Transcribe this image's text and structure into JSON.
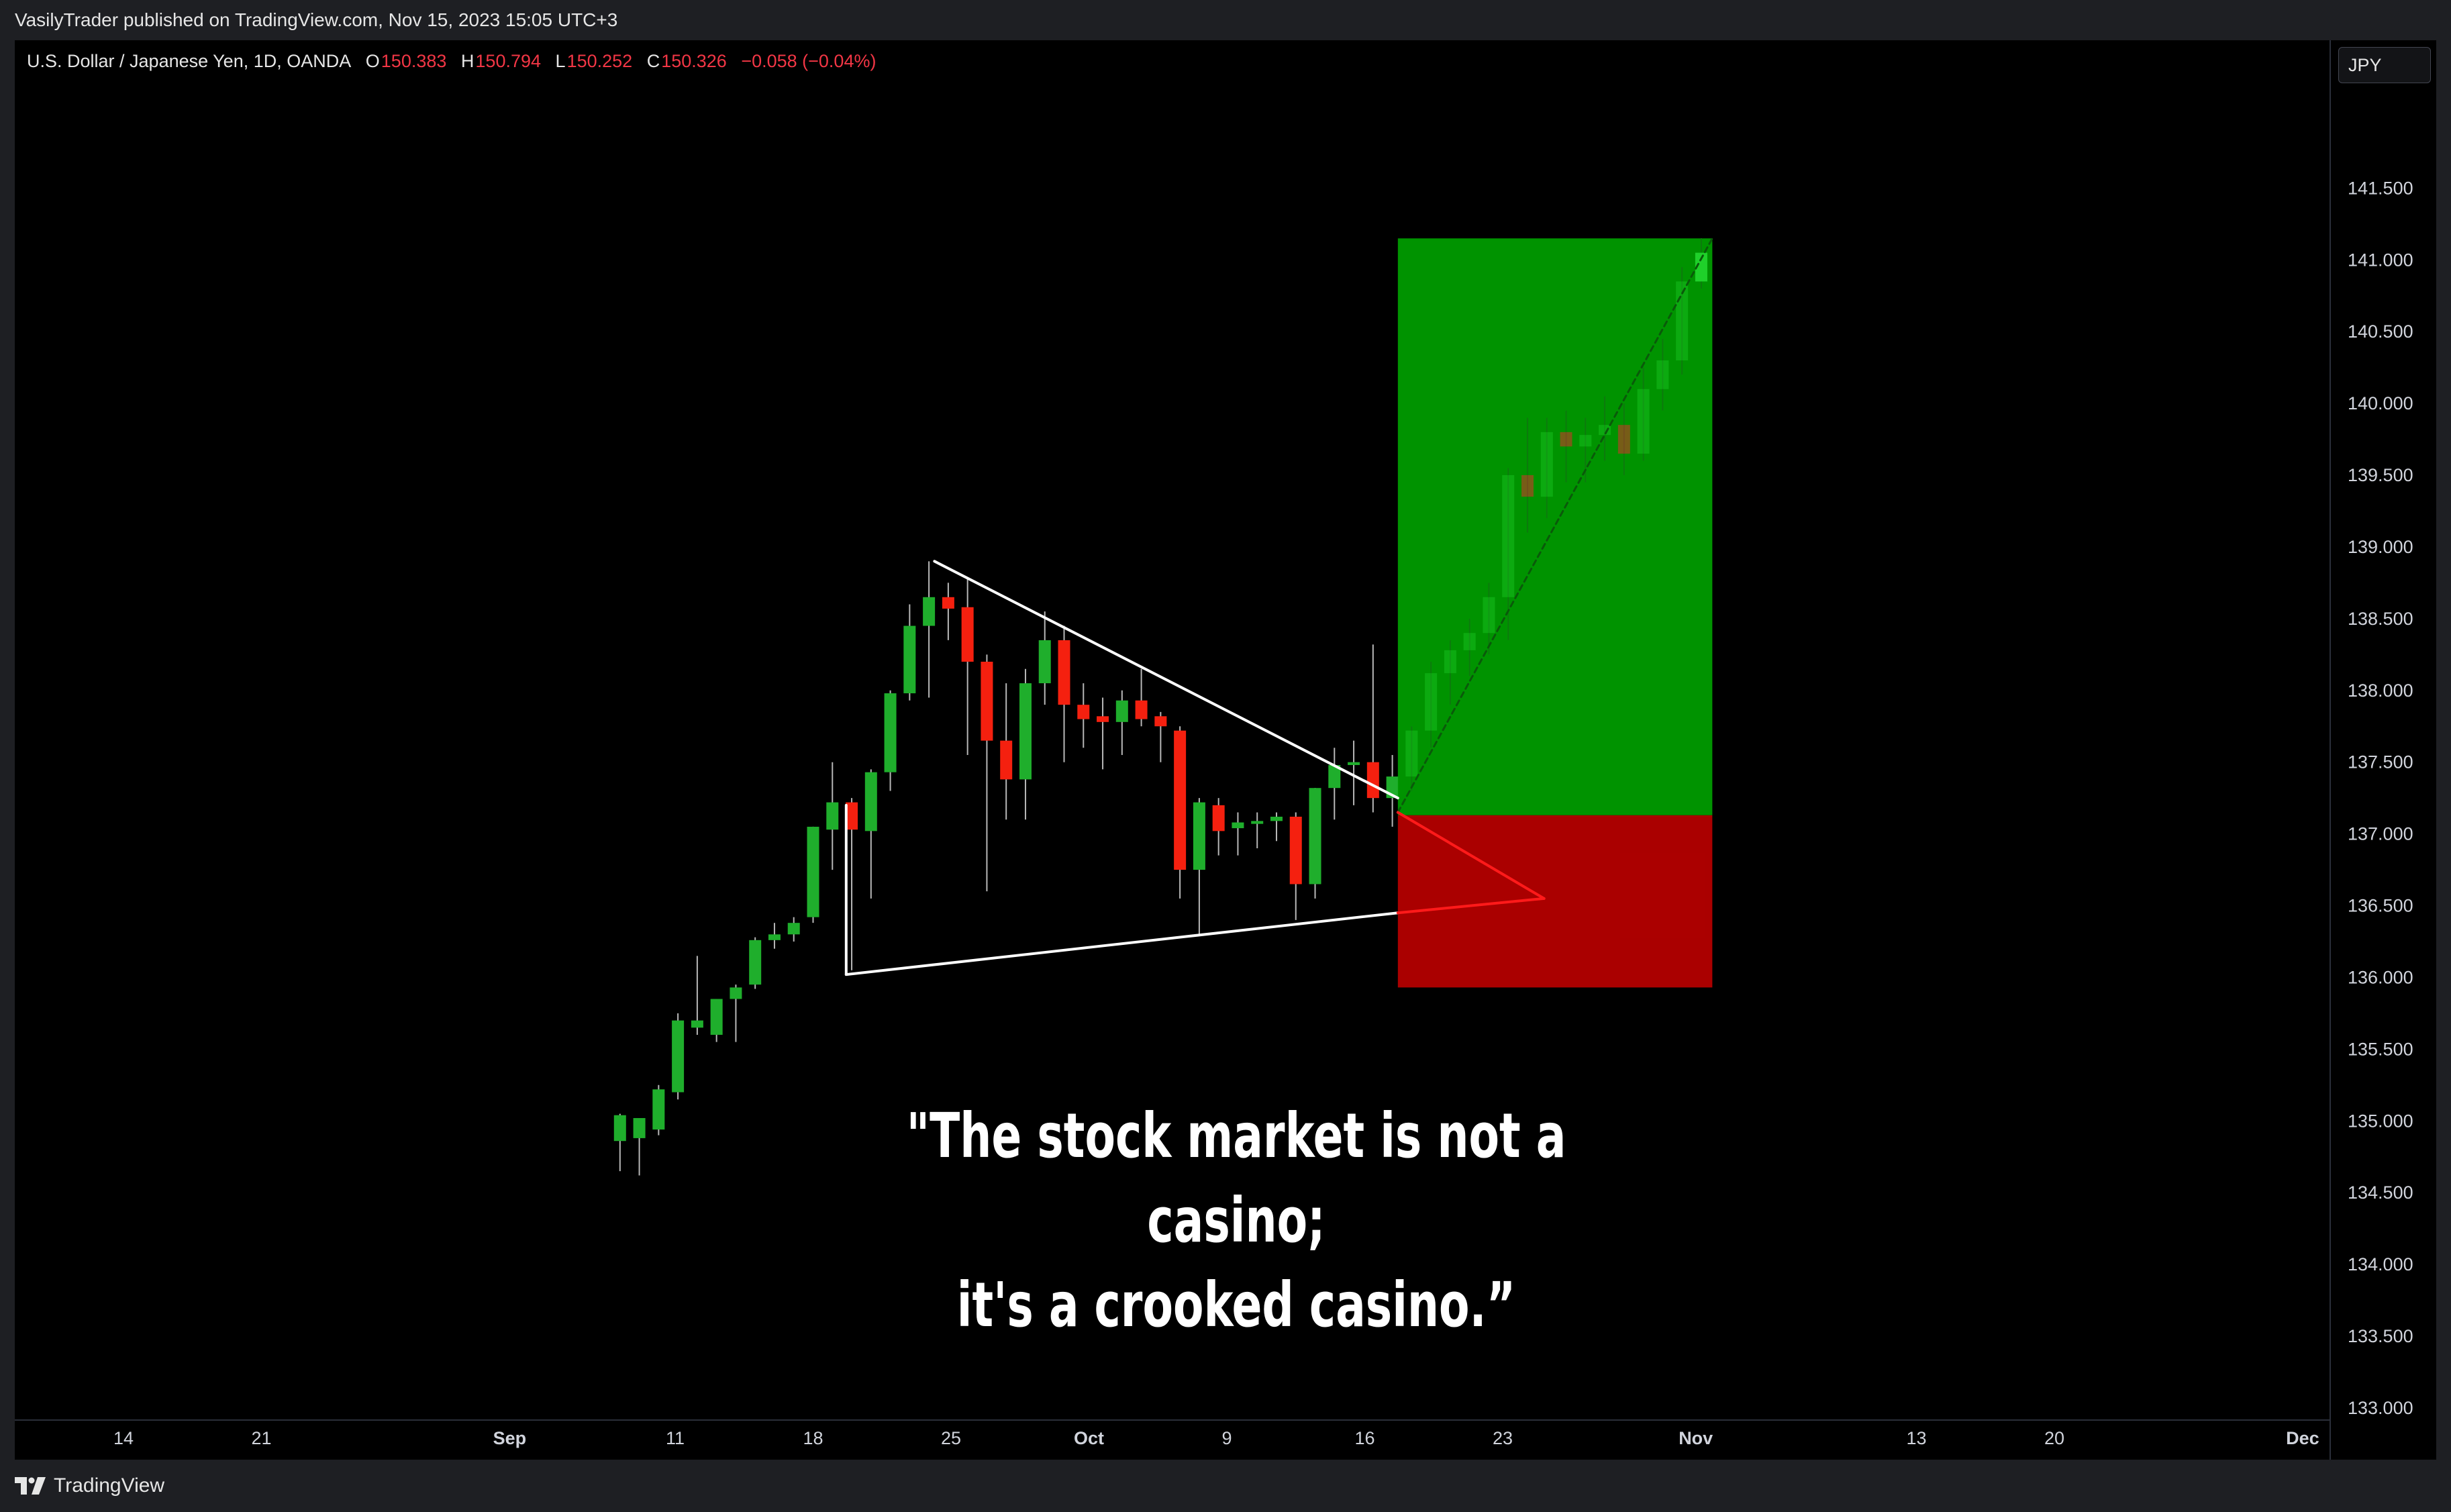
{
  "header": {
    "published": "VasilyTrader published on TradingView.com, Nov 15, 2023 15:05 UTC+3"
  },
  "legend": {
    "symbol": "U.S. Dollar / Japanese Yen, 1D, OANDA",
    "o_label": "O",
    "o": "150.383",
    "h_label": "H",
    "h": "150.794",
    "l_label": "L",
    "l": "150.252",
    "c_label": "C",
    "c": "150.326",
    "change": "−0.058 (−0.04%)"
  },
  "currency": "JPY",
  "quote": {
    "line1": "\"The stock market is not a casino;",
    "line2": "it's a crooked casino.”"
  },
  "footer": {
    "brand": "TradingView"
  },
  "colors": {
    "up": "#089981",
    "up_candle": "#1fae2c",
    "down_candle": "#f5200f",
    "legend_red": "#f23645",
    "profit_zone": "#00a000",
    "loss_zone": "#b00000"
  },
  "chart_data": {
    "type": "candlestick",
    "y_ticks": [
      "141.500",
      "141.000",
      "140.500",
      "140.000",
      "139.500",
      "139.000",
      "138.500",
      "138.000",
      "137.500",
      "137.000",
      "136.500",
      "136.000",
      "135.500",
      "135.000",
      "134.500",
      "134.000",
      "133.500",
      "133.000"
    ],
    "ylim": [
      132.85,
      142.25
    ],
    "x_ticks": [
      {
        "label": "14",
        "day": 0
      },
      {
        "label": "21",
        "day": 5
      },
      {
        "label": "Sep",
        "day": 14
      },
      {
        "label": "11",
        "day": 20
      },
      {
        "label": "18",
        "day": 25
      },
      {
        "label": "25",
        "day": 30
      },
      {
        "label": "Oct",
        "day": 35
      },
      {
        "label": "9",
        "day": 40
      },
      {
        "label": "16",
        "day": 45
      },
      {
        "label": "23",
        "day": 50
      },
      {
        "label": "Nov",
        "day": 57
      },
      {
        "label": "13",
        "day": 65
      },
      {
        "label": "20",
        "day": 70
      },
      {
        "label": "Dec",
        "day": 79
      }
    ],
    "candles": [
      {
        "d": 18,
        "o": 134.86,
        "h": 135.05,
        "l": 134.65,
        "c": 135.04
      },
      {
        "d": 18.7,
        "o": 134.88,
        "h": 135.0,
        "l": 134.62,
        "c": 135.02
      },
      {
        "d": 19.4,
        "o": 134.94,
        "h": 135.25,
        "l": 134.9,
        "c": 135.22
      },
      {
        "d": 20.1,
        "o": 135.2,
        "h": 135.75,
        "l": 135.15,
        "c": 135.7
      },
      {
        "d": 20.8,
        "o": 135.65,
        "h": 136.15,
        "l": 135.6,
        "c": 135.7
      },
      {
        "d": 21.5,
        "o": 135.6,
        "h": 135.85,
        "l": 135.55,
        "c": 135.85
      },
      {
        "d": 22.2,
        "o": 135.85,
        "h": 135.95,
        "l": 135.55,
        "c": 135.93
      },
      {
        "d": 22.9,
        "o": 135.95,
        "h": 136.28,
        "l": 135.92,
        "c": 136.26
      },
      {
        "d": 23.6,
        "o": 136.26,
        "h": 136.38,
        "l": 136.2,
        "c": 136.3
      },
      {
        "d": 24.3,
        "o": 136.3,
        "h": 136.42,
        "l": 136.25,
        "c": 136.38
      },
      {
        "d": 25.0,
        "o": 136.42,
        "h": 137.05,
        "l": 136.38,
        "c": 137.05
      },
      {
        "d": 25.7,
        "o": 137.03,
        "h": 137.5,
        "l": 136.75,
        "c": 137.22
      },
      {
        "d": 26.4,
        "o": 137.22,
        "h": 137.25,
        "l": 136.05,
        "c": 137.03
      },
      {
        "d": 27.1,
        "o": 137.02,
        "h": 137.45,
        "l": 136.55,
        "c": 137.43
      },
      {
        "d": 27.8,
        "o": 137.43,
        "h": 138.0,
        "l": 137.3,
        "c": 137.98
      },
      {
        "d": 28.5,
        "o": 137.98,
        "h": 138.6,
        "l": 137.93,
        "c": 138.45
      },
      {
        "d": 29.2,
        "o": 138.45,
        "h": 138.9,
        "l": 137.95,
        "c": 138.65
      },
      {
        "d": 29.9,
        "o": 138.65,
        "h": 138.75,
        "l": 138.35,
        "c": 138.57
      },
      {
        "d": 30.6,
        "o": 138.58,
        "h": 138.78,
        "l": 137.55,
        "c": 138.2
      },
      {
        "d": 31.3,
        "o": 138.2,
        "h": 138.25,
        "l": 136.6,
        "c": 137.65
      },
      {
        "d": 32.0,
        "o": 137.65,
        "h": 138.05,
        "l": 137.1,
        "c": 137.38
      },
      {
        "d": 32.7,
        "o": 137.38,
        "h": 138.15,
        "l": 137.1,
        "c": 138.05
      },
      {
        "d": 33.4,
        "o": 138.05,
        "h": 138.55,
        "l": 137.9,
        "c": 138.35
      },
      {
        "d": 34.1,
        "o": 138.35,
        "h": 138.45,
        "l": 137.5,
        "c": 137.9
      },
      {
        "d": 34.8,
        "o": 137.9,
        "h": 138.05,
        "l": 137.6,
        "c": 137.8
      },
      {
        "d": 35.5,
        "o": 137.82,
        "h": 137.95,
        "l": 137.45,
        "c": 137.78
      },
      {
        "d": 36.2,
        "o": 137.78,
        "h": 138.0,
        "l": 137.55,
        "c": 137.93
      },
      {
        "d": 36.9,
        "o": 137.93,
        "h": 138.15,
        "l": 137.75,
        "c": 137.8
      },
      {
        "d": 37.6,
        "o": 137.82,
        "h": 137.85,
        "l": 137.5,
        "c": 137.75
      },
      {
        "d": 38.3,
        "o": 137.72,
        "h": 137.75,
        "l": 136.55,
        "c": 136.75
      },
      {
        "d": 39.0,
        "o": 136.75,
        "h": 137.25,
        "l": 136.3,
        "c": 137.22
      },
      {
        "d": 39.7,
        "o": 137.2,
        "h": 137.25,
        "l": 136.85,
        "c": 137.02
      },
      {
        "d": 40.4,
        "o": 137.04,
        "h": 137.15,
        "l": 136.85,
        "c": 137.08
      },
      {
        "d": 41.1,
        "o": 137.07,
        "h": 137.15,
        "l": 136.9,
        "c": 137.09
      },
      {
        "d": 41.8,
        "o": 137.09,
        "h": 137.15,
        "l": 136.95,
        "c": 137.12
      },
      {
        "d": 42.5,
        "o": 137.12,
        "h": 137.15,
        "l": 136.4,
        "c": 136.65
      },
      {
        "d": 43.2,
        "o": 136.65,
        "h": 137.32,
        "l": 136.55,
        "c": 137.32
      },
      {
        "d": 43.9,
        "o": 137.32,
        "h": 137.6,
        "l": 137.1,
        "c": 137.48
      },
      {
        "d": 44.6,
        "o": 137.48,
        "h": 137.65,
        "l": 137.2,
        "c": 137.5
      },
      {
        "d": 45.3,
        "o": 137.5,
        "h": 138.32,
        "l": 137.15,
        "c": 137.25
      },
      {
        "d": 46.0,
        "o": 137.25,
        "h": 137.55,
        "l": 137.05,
        "c": 137.4
      },
      {
        "d": 46.7,
        "o": 137.4,
        "h": 137.75,
        "l": 137.3,
        "c": 137.72
      },
      {
        "d": 47.4,
        "o": 137.72,
        "h": 138.2,
        "l": 137.6,
        "c": 138.12
      },
      {
        "d": 48.1,
        "o": 138.12,
        "h": 138.35,
        "l": 137.9,
        "c": 138.28
      },
      {
        "d": 48.8,
        "o": 138.28,
        "h": 138.5,
        "l": 138.1,
        "c": 138.4
      },
      {
        "d": 49.5,
        "o": 138.4,
        "h": 138.75,
        "l": 138.25,
        "c": 138.65
      },
      {
        "d": 50.2,
        "o": 138.65,
        "h": 139.55,
        "l": 138.35,
        "c": 139.5
      },
      {
        "d": 50.9,
        "o": 139.5,
        "h": 139.9,
        "l": 139.1,
        "c": 139.35
      },
      {
        "d": 51.6,
        "o": 139.35,
        "h": 139.9,
        "l": 139.2,
        "c": 139.8
      },
      {
        "d": 52.3,
        "o": 139.8,
        "h": 139.95,
        "l": 139.45,
        "c": 139.7
      },
      {
        "d": 53.0,
        "o": 139.7,
        "h": 139.9,
        "l": 139.45,
        "c": 139.78
      },
      {
        "d": 53.7,
        "o": 139.78,
        "h": 140.05,
        "l": 139.6,
        "c": 139.85
      },
      {
        "d": 54.4,
        "o": 139.85,
        "h": 140.0,
        "l": 139.5,
        "c": 139.65
      },
      {
        "d": 55.1,
        "o": 139.65,
        "h": 140.25,
        "l": 139.6,
        "c": 140.1
      },
      {
        "d": 55.8,
        "o": 140.1,
        "h": 140.45,
        "l": 139.95,
        "c": 140.3
      },
      {
        "d": 56.5,
        "o": 140.3,
        "h": 140.95,
        "l": 140.2,
        "c": 140.85
      },
      {
        "d": 57.2,
        "o": 140.85,
        "h": 141.15,
        "l": 140.8,
        "c": 141.05
      }
    ],
    "trendlines": [
      {
        "name": "triangle-upper",
        "from": [
          29.4,
          138.9
        ],
        "to": [
          46.2,
          137.25
        ]
      },
      {
        "name": "triangle-lower",
        "from": [
          26.2,
          136.02
        ],
        "to": [
          46.2,
          136.45
        ]
      },
      {
        "name": "triangle-left",
        "from": [
          26.2,
          136.02
        ],
        "to": [
          26.2,
          137.2
        ]
      },
      {
        "name": "breakout-path",
        "from": [
          46.2,
          137.15
        ],
        "to": [
          57.6,
          141.15
        ]
      },
      {
        "name": "red-wedge-top",
        "from": [
          46.2,
          137.15
        ],
        "to": [
          51.5,
          136.55
        ]
      },
      {
        "name": "red-wedge-bottom",
        "from": [
          46.2,
          136.45
        ],
        "to": [
          51.5,
          136.55
        ]
      }
    ],
    "position": {
      "type": "long",
      "start_day": 46.2,
      "end_day": 57.6,
      "entry": 137.13,
      "target": 141.15,
      "stop": 135.93
    }
  }
}
